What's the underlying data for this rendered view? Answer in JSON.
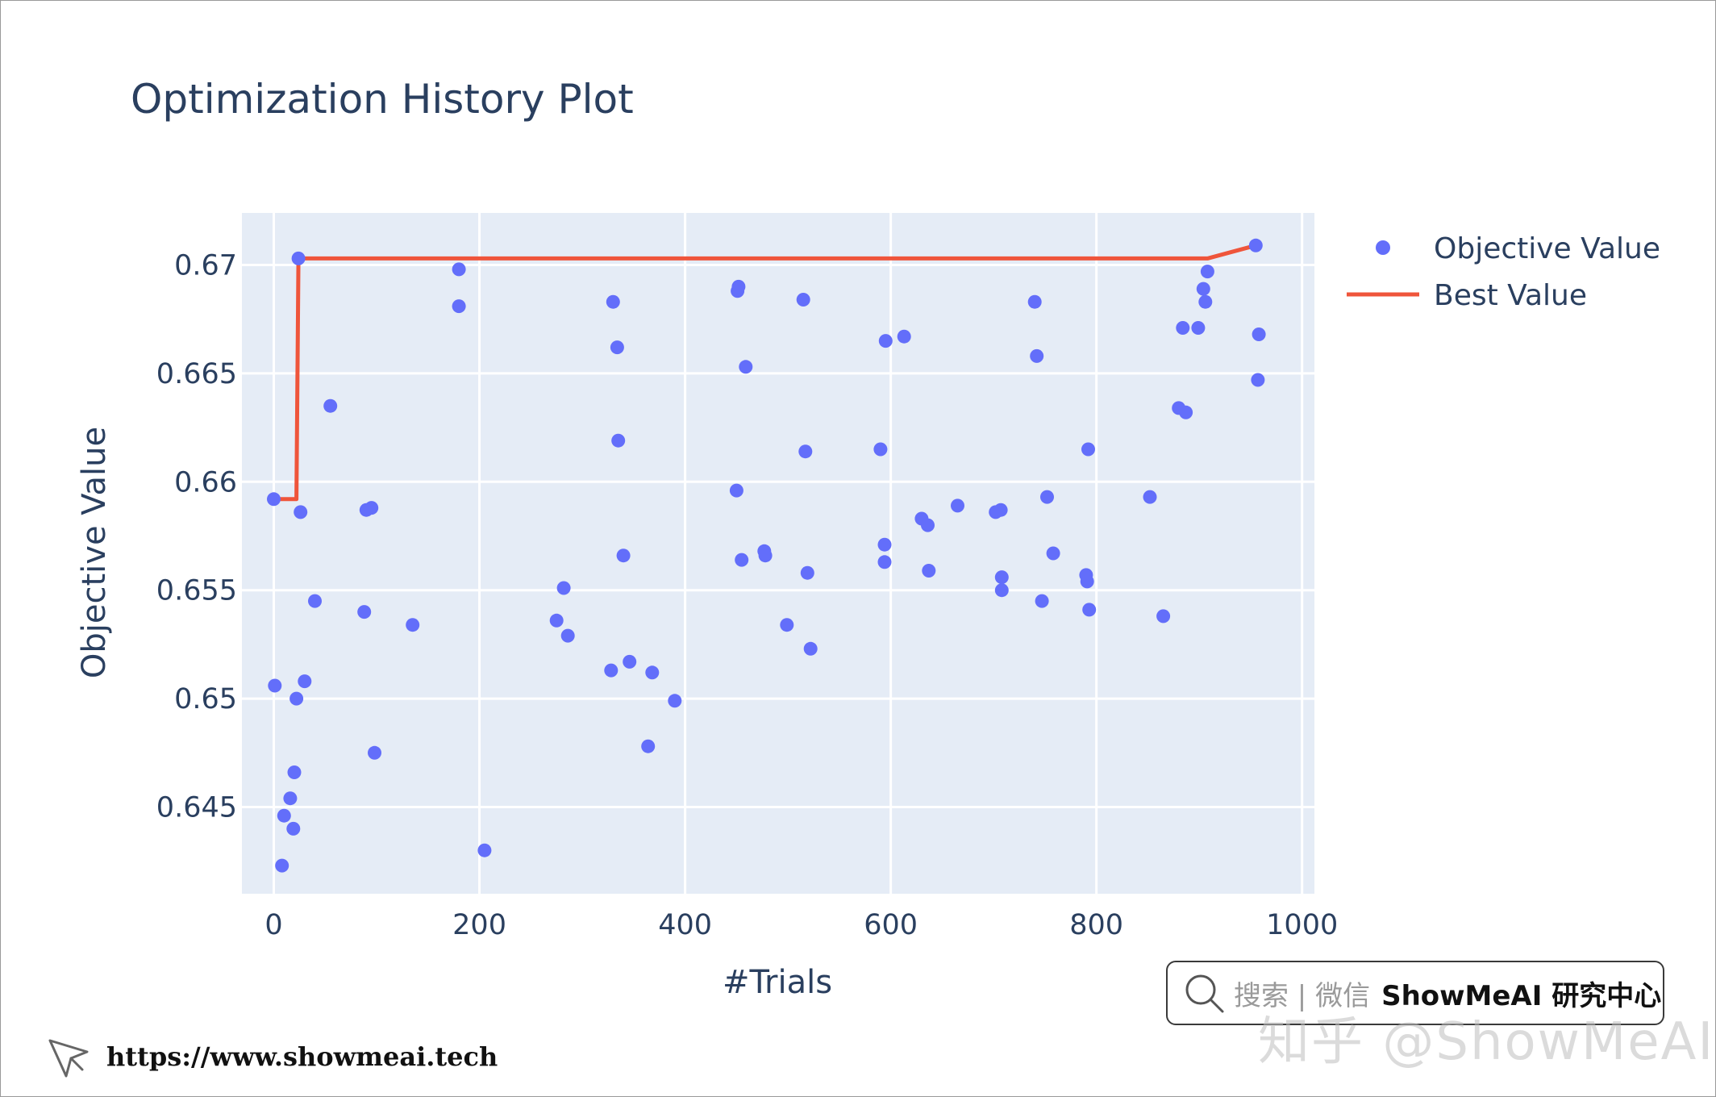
{
  "chart_data": {
    "type": "scatter",
    "title": "Optimization History Plot",
    "xlabel": "#Trials",
    "ylabel": "Objective Value",
    "xlim": [
      -31,
      1012
    ],
    "ylim": [
      0.641,
      0.6724
    ],
    "xticks": [
      0,
      200,
      400,
      600,
      800,
      1000
    ],
    "xtick_labels": [
      "0",
      "200",
      "400",
      "600",
      "800",
      "1000"
    ],
    "yticks": [
      0.645,
      0.65,
      0.655,
      0.66,
      0.665,
      0.67
    ],
    "ytick_labels": [
      "0.645",
      "0.65",
      "0.655",
      "0.66",
      "0.665",
      "0.67"
    ],
    "grid": true,
    "legend": "top-right-outside",
    "series": [
      {
        "name": "Objective Value",
        "mode": "markers",
        "color": "#636efa",
        "points": [
          [
            0,
            0.6592
          ],
          [
            1,
            0.6506
          ],
          [
            8,
            0.6423
          ],
          [
            10,
            0.6446
          ],
          [
            16,
            0.6454
          ],
          [
            19,
            0.644
          ],
          [
            20,
            0.6466
          ],
          [
            22,
            0.65
          ],
          [
            24,
            0.6703
          ],
          [
            26,
            0.6586
          ],
          [
            30,
            0.6508
          ],
          [
            40,
            0.6545
          ],
          [
            55,
            0.6635
          ],
          [
            88,
            0.654
          ],
          [
            90,
            0.6587
          ],
          [
            95,
            0.6588
          ],
          [
            98,
            0.6475
          ],
          [
            135,
            0.6534
          ],
          [
            180,
            0.6698
          ],
          [
            180,
            0.6681
          ],
          [
            205,
            0.643
          ],
          [
            275,
            0.6536
          ],
          [
            282,
            0.6551
          ],
          [
            286,
            0.6529
          ],
          [
            328,
            0.6513
          ],
          [
            330,
            0.6683
          ],
          [
            334,
            0.6662
          ],
          [
            335,
            0.6619
          ],
          [
            340,
            0.6566
          ],
          [
            346,
            0.6517
          ],
          [
            364,
            0.6478
          ],
          [
            368,
            0.6512
          ],
          [
            390,
            0.6499
          ],
          [
            450,
            0.6596
          ],
          [
            451,
            0.6688
          ],
          [
            452,
            0.669
          ],
          [
            455,
            0.6564
          ],
          [
            459,
            0.6653
          ],
          [
            477,
            0.6568
          ],
          [
            478,
            0.6566
          ],
          [
            499,
            0.6534
          ],
          [
            515,
            0.6684
          ],
          [
            517,
            0.6614
          ],
          [
            519,
            0.6558
          ],
          [
            522,
            0.6523
          ],
          [
            590,
            0.6615
          ],
          [
            594,
            0.6571
          ],
          [
            594,
            0.6563
          ],
          [
            595,
            0.6665
          ],
          [
            613,
            0.6667
          ],
          [
            630,
            0.6583
          ],
          [
            636,
            0.658
          ],
          [
            637,
            0.6559
          ],
          [
            665,
            0.6589
          ],
          [
            702,
            0.6586
          ],
          [
            707,
            0.6587
          ],
          [
            708,
            0.655
          ],
          [
            708,
            0.6556
          ],
          [
            740,
            0.6683
          ],
          [
            742,
            0.6658
          ],
          [
            747,
            0.6545
          ],
          [
            752,
            0.6593
          ],
          [
            758,
            0.6567
          ],
          [
            790,
            0.6557
          ],
          [
            791,
            0.6554
          ],
          [
            792,
            0.6615
          ],
          [
            793,
            0.6541
          ],
          [
            852,
            0.6593
          ],
          [
            865,
            0.6538
          ],
          [
            880,
            0.6634
          ],
          [
            884,
            0.6671
          ],
          [
            887,
            0.6632
          ],
          [
            899,
            0.6671
          ],
          [
            904,
            0.6689
          ],
          [
            906,
            0.6683
          ],
          [
            908,
            0.6697
          ],
          [
            955,
            0.6709
          ],
          [
            957,
            0.6647
          ],
          [
            958,
            0.6668
          ]
        ]
      },
      {
        "name": "Best Value",
        "mode": "lines",
        "color": "#ef553b",
        "points": [
          [
            0,
            0.6592
          ],
          [
            22,
            0.6592
          ],
          [
            24,
            0.6703
          ],
          [
            908,
            0.6703
          ],
          [
            955,
            0.6709
          ]
        ]
      }
    ]
  },
  "badge": {
    "search_text": "搜索 | 微信",
    "brand": "ShowMeAI 研究中心",
    "search_icon": "search-icon"
  },
  "watermark": "知乎 @ShowMeAI",
  "footer": {
    "url": "https://www.showmeai.tech",
    "icon": "cursor-icon"
  }
}
